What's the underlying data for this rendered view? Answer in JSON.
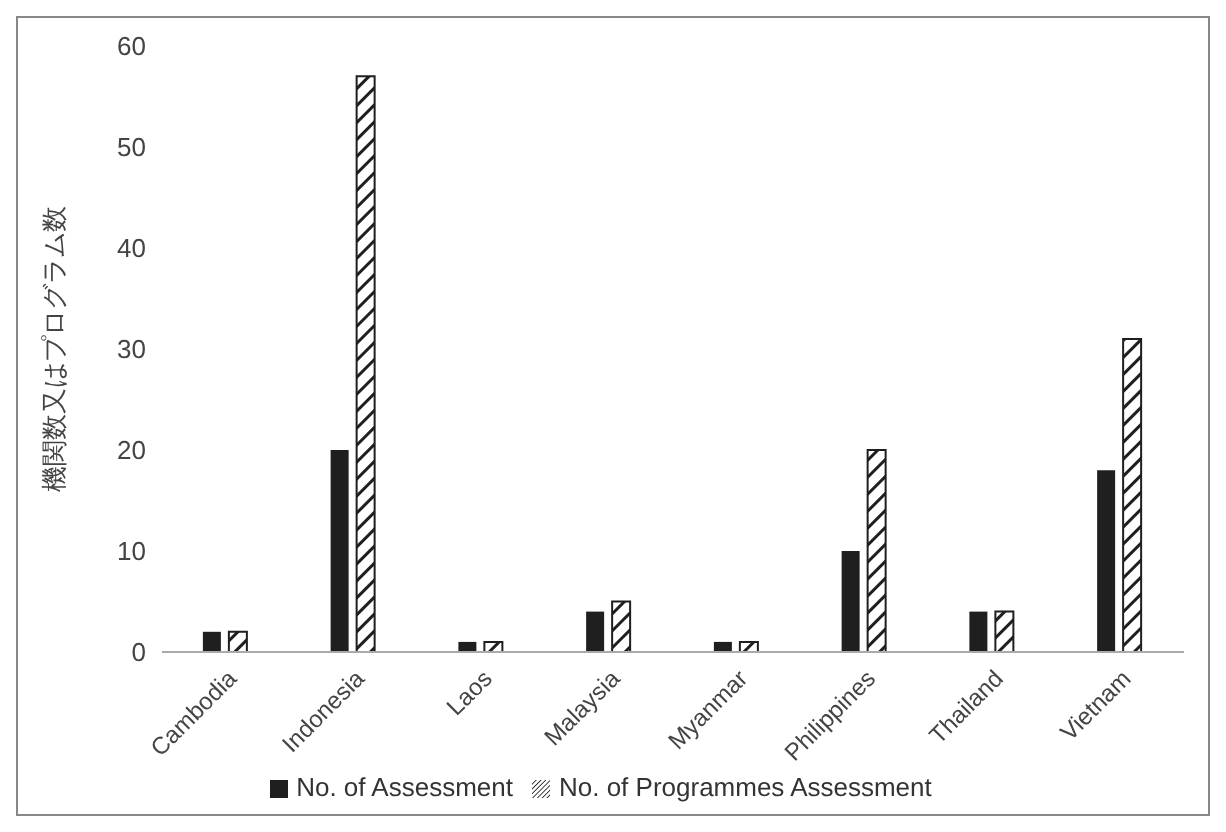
{
  "chart_data": {
    "type": "bar",
    "ylabel": "機関数又はプログラム数",
    "categories": [
      "Cambodia",
      "Indonesia",
      "Laos",
      "Malaysia",
      "Myanmar",
      "Philippines",
      "Thailand",
      "Vietnam"
    ],
    "series": [
      {
        "name": "No. of Assessment",
        "color": "#1f1f1f",
        "values": [
          2,
          20,
          1,
          4,
          1,
          10,
          4,
          18
        ]
      },
      {
        "name": "No. of Programmes Assessment",
        "color": "#1f1f1f",
        "values": [
          2,
          57,
          1,
          5,
          1,
          20,
          4,
          31
        ]
      }
    ],
    "ylim": [
      0,
      60
    ],
    "yticks": [
      0,
      10,
      20,
      30,
      40,
      50,
      60
    ],
    "grid": false,
    "legend": "bottom"
  }
}
